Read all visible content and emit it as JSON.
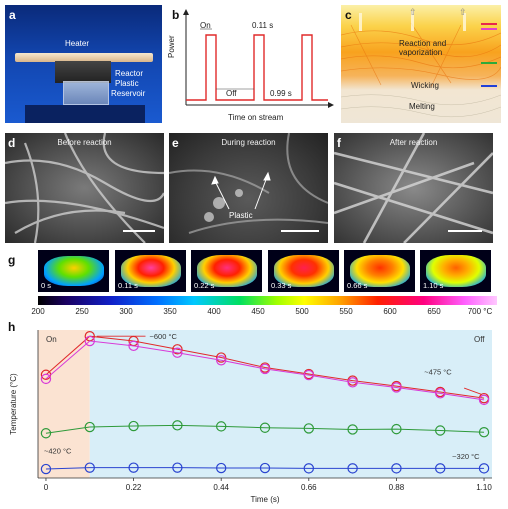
{
  "panel_labels": [
    "a",
    "b",
    "c",
    "d",
    "e",
    "f",
    "g",
    "h"
  ],
  "panel_a": {
    "heater": "Heater",
    "reactor": "Reactor",
    "plastic": "Plastic",
    "reservoir": "Reservoir"
  },
  "panel_b": {
    "on": "On",
    "off": "Off",
    "on_time": "0.11 s",
    "off_time": "0.99 s",
    "xlabel": "Time on stream",
    "ylabel": "Power"
  },
  "panel_c": {
    "reaction": "Reaction and",
    "vaporization": "vaporization",
    "wicking": "Wicking",
    "melting": "Melting",
    "marker_colors": [
      "#e8274b",
      "#e040c8",
      "#2eaa3a",
      "#2040d8"
    ]
  },
  "panel_d": {
    "label": "Before reaction"
  },
  "panel_e": {
    "label": "During reaction",
    "plastic": "Plastic"
  },
  "panel_f": {
    "label": "After reaction"
  },
  "panel_g": {
    "frames": [
      "0 s",
      "0.11 s",
      "0.22 s",
      "0.33 s",
      "0.66 s",
      "1.10 s"
    ],
    "colorbar_ticks": [
      "200",
      "250",
      "300",
      "350",
      "400",
      "450",
      "500",
      "550",
      "600",
      "650",
      "700 °C"
    ]
  },
  "chart_data": {
    "type": "line",
    "xlabel": "Time (s)",
    "ylabel": "Temperature (°C)",
    "xlim": [
      -0.02,
      1.12
    ],
    "x_ticks": [
      "0",
      "0.22",
      "0.44",
      "0.66",
      "0.88",
      "1.10"
    ],
    "x": [
      0,
      0.11,
      0.22,
      0.33,
      0.44,
      0.55,
      0.66,
      0.77,
      0.88,
      0.99,
      1.1
    ],
    "region_labels": {
      "on": "On",
      "off": "Off"
    },
    "annotations": [
      "~600 °C",
      "~475 °C",
      "~420 °C",
      "~320 °C"
    ],
    "colors": {
      "on_region": "#fbe3d2",
      "off_region": "#d8eef8"
    },
    "series": [
      {
        "color": "#e02a2a",
        "values": [
          590,
          702,
          688,
          664,
          640,
          611,
          592,
          573,
          557,
          540,
          522
        ]
      },
      {
        "color": "#d83ad8",
        "values": [
          578,
          688,
          674,
          654,
          632,
          607,
          589,
          568,
          553,
          536,
          517
        ]
      },
      {
        "color": "#2e9a3a",
        "values": [
          420,
          438,
          441,
          443,
          440,
          436,
          434,
          431,
          432,
          428,
          423
        ]
      },
      {
        "color": "#2a44d0",
        "values": [
          316,
          320,
          320,
          320,
          319,
          319,
          318,
          318,
          318,
          318,
          318
        ]
      }
    ]
  }
}
